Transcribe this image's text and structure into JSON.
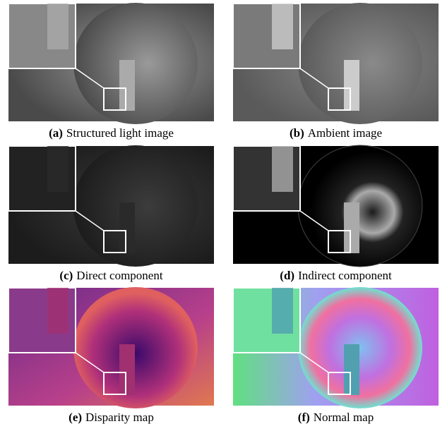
{
  "figure": {
    "panels": [
      {
        "label": "(a)",
        "caption": "Structured light image"
      },
      {
        "label": "(b)",
        "caption": "Ambient image"
      },
      {
        "label": "(c)",
        "caption": "Direct component"
      },
      {
        "label": "(d)",
        "caption": "Indirect component"
      },
      {
        "label": "(e)",
        "caption": "Disparity map"
      },
      {
        "label": "(f)",
        "caption": "Normal map"
      }
    ]
  }
}
